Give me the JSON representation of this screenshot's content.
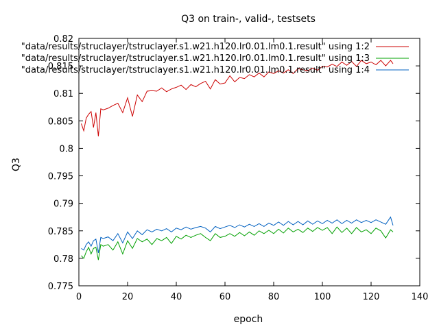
{
  "chart_data": {
    "type": "line",
    "title": "Q3 on train-, valid-, testsets",
    "xlabel": "epoch",
    "ylabel": "Q3",
    "xlim": [
      0,
      140
    ],
    "ylim": [
      0.775,
      0.82
    ],
    "xticks": [
      0,
      20,
      40,
      60,
      80,
      100,
      120,
      140
    ],
    "yticks": [
      0.775,
      0.78,
      0.785,
      0.79,
      0.795,
      0.8,
      0.805,
      0.81,
      0.815,
      0.82
    ],
    "xtick_labels": [
      "0",
      "20",
      "40",
      "60",
      "80",
      "100",
      "120",
      "140"
    ],
    "ytick_labels": [
      "0.775",
      "0.78",
      "0.785",
      "0.79",
      "0.795",
      "0.8",
      "0.805",
      "0.81",
      "0.815",
      "0.82"
    ],
    "grid": false,
    "legend_position": "top-right",
    "series": [
      {
        "name": "\"data/results/struclayer/tstruclayer.s1.w21.h120.lr0.01.lm0.1.result\" using 1:2",
        "color": "#cc0000",
        "x": [
          1,
          2,
          3,
          4,
          5,
          6,
          7,
          8,
          9,
          10,
          12,
          14,
          16,
          18,
          20,
          22,
          24,
          26,
          28,
          30,
          32,
          34,
          36,
          38,
          40,
          42,
          44,
          46,
          48,
          50,
          52,
          54,
          56,
          58,
          60,
          62,
          64,
          66,
          68,
          70,
          72,
          74,
          76,
          78,
          80,
          82,
          84,
          86,
          88,
          90,
          92,
          94,
          96,
          98,
          100,
          102,
          104,
          106,
          108,
          110,
          112,
          114,
          116,
          118,
          120,
          122,
          124,
          126,
          128,
          129
        ],
        "y": [
          0.8045,
          0.8032,
          0.8055,
          0.8062,
          0.8067,
          0.8038,
          0.8065,
          0.8022,
          0.8072,
          0.807,
          0.8073,
          0.8078,
          0.8082,
          0.8065,
          0.8092,
          0.8058,
          0.8097,
          0.8085,
          0.8104,
          0.8105,
          0.8104,
          0.811,
          0.8103,
          0.8108,
          0.8111,
          0.8115,
          0.8107,
          0.8116,
          0.8112,
          0.8118,
          0.8122,
          0.8108,
          0.8125,
          0.8117,
          0.8119,
          0.8132,
          0.8121,
          0.8129,
          0.8127,
          0.8134,
          0.813,
          0.8137,
          0.813,
          0.8139,
          0.8136,
          0.8141,
          0.8137,
          0.8143,
          0.8136,
          0.8145,
          0.8143,
          0.8141,
          0.8146,
          0.8142,
          0.8149,
          0.8148,
          0.8153,
          0.8149,
          0.8157,
          0.8151,
          0.8158,
          0.8149,
          0.816,
          0.8154,
          0.8157,
          0.8152,
          0.816,
          0.815,
          0.816,
          0.8154
        ]
      },
      {
        "name": "\"data/results/struclayer/tstruclayer.s1.w21.h120.lr0.01.lm0.1.result\" using 1:3",
        "color": "#00a000",
        "x": [
          1,
          2,
          3,
          4,
          5,
          6,
          7,
          8,
          9,
          10,
          12,
          14,
          16,
          18,
          20,
          22,
          24,
          26,
          28,
          30,
          32,
          34,
          36,
          38,
          40,
          42,
          44,
          46,
          48,
          50,
          52,
          54,
          56,
          58,
          60,
          62,
          64,
          66,
          68,
          70,
          72,
          74,
          76,
          78,
          80,
          82,
          84,
          86,
          88,
          90,
          92,
          94,
          96,
          98,
          100,
          102,
          104,
          106,
          108,
          110,
          112,
          114,
          116,
          118,
          120,
          122,
          124,
          126,
          128,
          129
        ],
        "y": [
          0.7805,
          0.78,
          0.7812,
          0.782,
          0.7808,
          0.7818,
          0.782,
          0.7797,
          0.7825,
          0.7822,
          0.7825,
          0.7815,
          0.783,
          0.7808,
          0.7832,
          0.7818,
          0.7836,
          0.783,
          0.7835,
          0.7825,
          0.7836,
          0.7832,
          0.7838,
          0.7827,
          0.784,
          0.7835,
          0.7842,
          0.7838,
          0.7842,
          0.7845,
          0.7838,
          0.7832,
          0.7845,
          0.7838,
          0.784,
          0.7845,
          0.784,
          0.7847,
          0.7841,
          0.7848,
          0.7842,
          0.785,
          0.7845,
          0.7851,
          0.7845,
          0.7853,
          0.7846,
          0.7855,
          0.7848,
          0.7853,
          0.7847,
          0.7855,
          0.7849,
          0.7856,
          0.7851,
          0.7856,
          0.7845,
          0.7857,
          0.7847,
          0.7855,
          0.7845,
          0.7856,
          0.7848,
          0.7852,
          0.7845,
          0.7855,
          0.785,
          0.7837,
          0.7852,
          0.7848
        ]
      },
      {
        "name": "\"data/results/struclayer/tstruclayer.s1.w21.h120.lr0.01.lm0.1.result\" using 1:4",
        "color": "#0060c0",
        "x": [
          1,
          2,
          3,
          4,
          5,
          6,
          7,
          8,
          9,
          10,
          12,
          14,
          16,
          18,
          20,
          22,
          24,
          26,
          28,
          30,
          32,
          34,
          36,
          38,
          40,
          42,
          44,
          46,
          48,
          50,
          52,
          54,
          56,
          58,
          60,
          62,
          64,
          66,
          68,
          70,
          72,
          74,
          76,
          78,
          80,
          82,
          84,
          86,
          88,
          90,
          92,
          94,
          96,
          98,
          100,
          102,
          104,
          106,
          108,
          110,
          112,
          114,
          116,
          118,
          120,
          122,
          124,
          126,
          128,
          129
        ],
        "y": [
          0.7818,
          0.7815,
          0.7825,
          0.783,
          0.7822,
          0.7832,
          0.7835,
          0.781,
          0.7838,
          0.7836,
          0.7839,
          0.7832,
          0.7845,
          0.7828,
          0.7848,
          0.7836,
          0.785,
          0.7843,
          0.7852,
          0.7848,
          0.7853,
          0.785,
          0.7854,
          0.7848,
          0.7855,
          0.7852,
          0.7857,
          0.7853,
          0.7856,
          0.7858,
          0.7855,
          0.7848,
          0.7858,
          0.7854,
          0.7857,
          0.786,
          0.7856,
          0.7861,
          0.7857,
          0.7862,
          0.7858,
          0.7863,
          0.7858,
          0.7864,
          0.786,
          0.7866,
          0.786,
          0.7867,
          0.7861,
          0.7867,
          0.7861,
          0.7868,
          0.7862,
          0.7868,
          0.7863,
          0.7869,
          0.7864,
          0.787,
          0.7863,
          0.7869,
          0.7864,
          0.787,
          0.7865,
          0.7869,
          0.7865,
          0.787,
          0.7866,
          0.7862,
          0.7875,
          0.786
        ]
      }
    ]
  }
}
